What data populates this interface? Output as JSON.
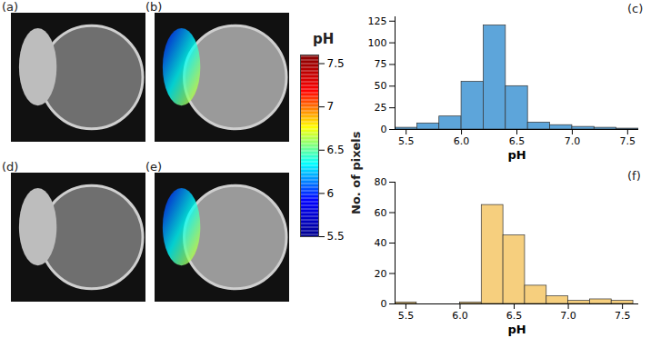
{
  "images": [
    {
      "label": "(a)"
    },
    {
      "label": "(b)",
      "overlay": true
    },
    {
      "label": "(d)"
    },
    {
      "label": "(e)",
      "overlay": true
    }
  ],
  "chart_data": [
    {
      "type": "histogram",
      "label": "(c)",
      "xlabel": "pH",
      "bins": [
        5.4,
        5.6,
        5.8,
        6.0,
        6.2,
        6.4,
        6.6,
        6.8,
        7.0,
        7.2,
        7.4,
        7.6
      ],
      "values": [
        2,
        7,
        15,
        55,
        120,
        50,
        8,
        5,
        3,
        2,
        1
      ],
      "color": "#5da5da",
      "xlim": [
        5.4,
        7.6
      ],
      "ylim": [
        0,
        130
      ],
      "xticks": [
        5.5,
        {
          "value": 6,
          "label": "6.0"
        },
        6.5,
        {
          "value": 7,
          "label": "7.0"
        },
        7.5
      ],
      "yticks": [
        0,
        25,
        50,
        75,
        100,
        125
      ]
    },
    {
      "type": "histogram",
      "label": "(f)",
      "xlabel": "pH",
      "ylabel": "No. of pixels",
      "bins": [
        5.4,
        5.6,
        5.8,
        6.0,
        6.2,
        6.4,
        6.6,
        6.8,
        7.0,
        7.2,
        7.4,
        7.6
      ],
      "values": [
        1,
        0,
        0,
        1,
        65,
        45,
        12,
        5,
        2,
        3,
        2
      ],
      "color": "#f6cf7e",
      "xlim": [
        5.4,
        7.65
      ],
      "ylim": [
        0,
        80
      ],
      "xticks": [
        5.5,
        {
          "value": 6,
          "label": "6.0"
        },
        6.5,
        {
          "value": 7,
          "label": "7.0"
        },
        7.5
      ],
      "yticks": [
        0,
        20,
        40,
        60,
        80
      ]
    },
    {
      "type": "colorbar",
      "title": "pH",
      "range": [
        5.5,
        7.6
      ],
      "ticks": [
        5.5,
        6,
        6.5,
        7,
        7.5
      ],
      "colors": [
        "#00008f",
        "#0000ff",
        "#00ffff",
        "#ffff00",
        "#ff0000",
        "#800000"
      ]
    }
  ]
}
